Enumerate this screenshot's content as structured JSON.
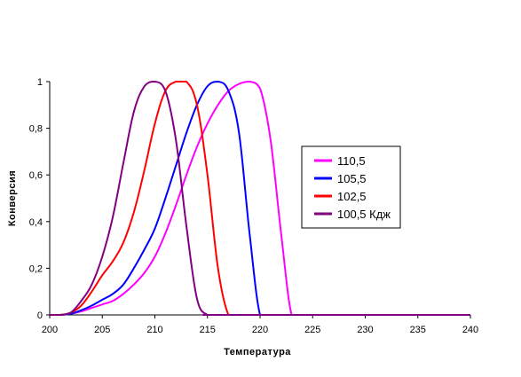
{
  "chart_data": {
    "type": "line",
    "title": "",
    "xlabel": "Температура",
    "ylabel": "Конверсия",
    "xlim": [
      200,
      240
    ],
    "ylim": [
      0,
      1
    ],
    "x_ticks": [
      200,
      205,
      210,
      215,
      220,
      225,
      230,
      235,
      240
    ],
    "y_ticks": [
      {
        "value": 0,
        "label": "0"
      },
      {
        "value": 0.2,
        "label": "0,2"
      },
      {
        "value": 0.4,
        "label": "0,4"
      },
      {
        "value": 0.6,
        "label": "0,6"
      },
      {
        "value": 0.8,
        "label": "0,8"
      },
      {
        "value": 1,
        "label": "1"
      }
    ],
    "grid": false,
    "legend_position": "right",
    "series": [
      {
        "name": "110,5",
        "color": "#ff00ff",
        "x": [
          200,
          201,
          202,
          203,
          204,
          205,
          206,
          207,
          208,
          209,
          210,
          211,
          212,
          213,
          214,
          215,
          216,
          217,
          218,
          219,
          220,
          221,
          222,
          223,
          224,
          230,
          240
        ],
        "y": [
          0,
          0,
          0.005,
          0.015,
          0.03,
          0.045,
          0.06,
          0.09,
          0.13,
          0.18,
          0.25,
          0.35,
          0.47,
          0.6,
          0.72,
          0.82,
          0.9,
          0.96,
          0.99,
          1.0,
          0.97,
          0.75,
          0.35,
          0.0,
          0,
          0,
          0
        ]
      },
      {
        "name": "105,5",
        "color": "#0000ff",
        "x": [
          200,
          201,
          202,
          203,
          204,
          205,
          206,
          207,
          208,
          209,
          210,
          211,
          212,
          213,
          214,
          215,
          216,
          217,
          218,
          219,
          220,
          221,
          230,
          240
        ],
        "y": [
          0,
          0,
          0.005,
          0.02,
          0.04,
          0.065,
          0.09,
          0.13,
          0.2,
          0.28,
          0.37,
          0.5,
          0.64,
          0.78,
          0.9,
          0.98,
          1.0,
          0.96,
          0.78,
          0.35,
          0.0,
          0,
          0,
          0
        ]
      },
      {
        "name": "102,5",
        "color": "#ff0000",
        "x": [
          200,
          201,
          202,
          203,
          204,
          205,
          206,
          207,
          208,
          209,
          210,
          211,
          212,
          213,
          214,
          215,
          216,
          217,
          218,
          230,
          240
        ],
        "y": [
          0,
          0,
          0.01,
          0.04,
          0.1,
          0.17,
          0.23,
          0.31,
          0.44,
          0.62,
          0.82,
          0.96,
          1.0,
          1.0,
          0.9,
          0.6,
          0.2,
          0.0,
          0,
          0,
          0
        ]
      },
      {
        "name": "100,5 Кдж",
        "color": "#800080",
        "x": [
          200,
          201,
          202,
          203,
          204,
          205,
          206,
          207,
          208,
          209,
          210,
          211,
          212,
          213,
          214,
          215,
          216,
          230,
          240
        ],
        "y": [
          0,
          0,
          0.01,
          0.06,
          0.13,
          0.25,
          0.42,
          0.65,
          0.87,
          0.98,
          1.0,
          0.96,
          0.75,
          0.38,
          0.07,
          0.0,
          0,
          0,
          0
        ]
      }
    ]
  }
}
